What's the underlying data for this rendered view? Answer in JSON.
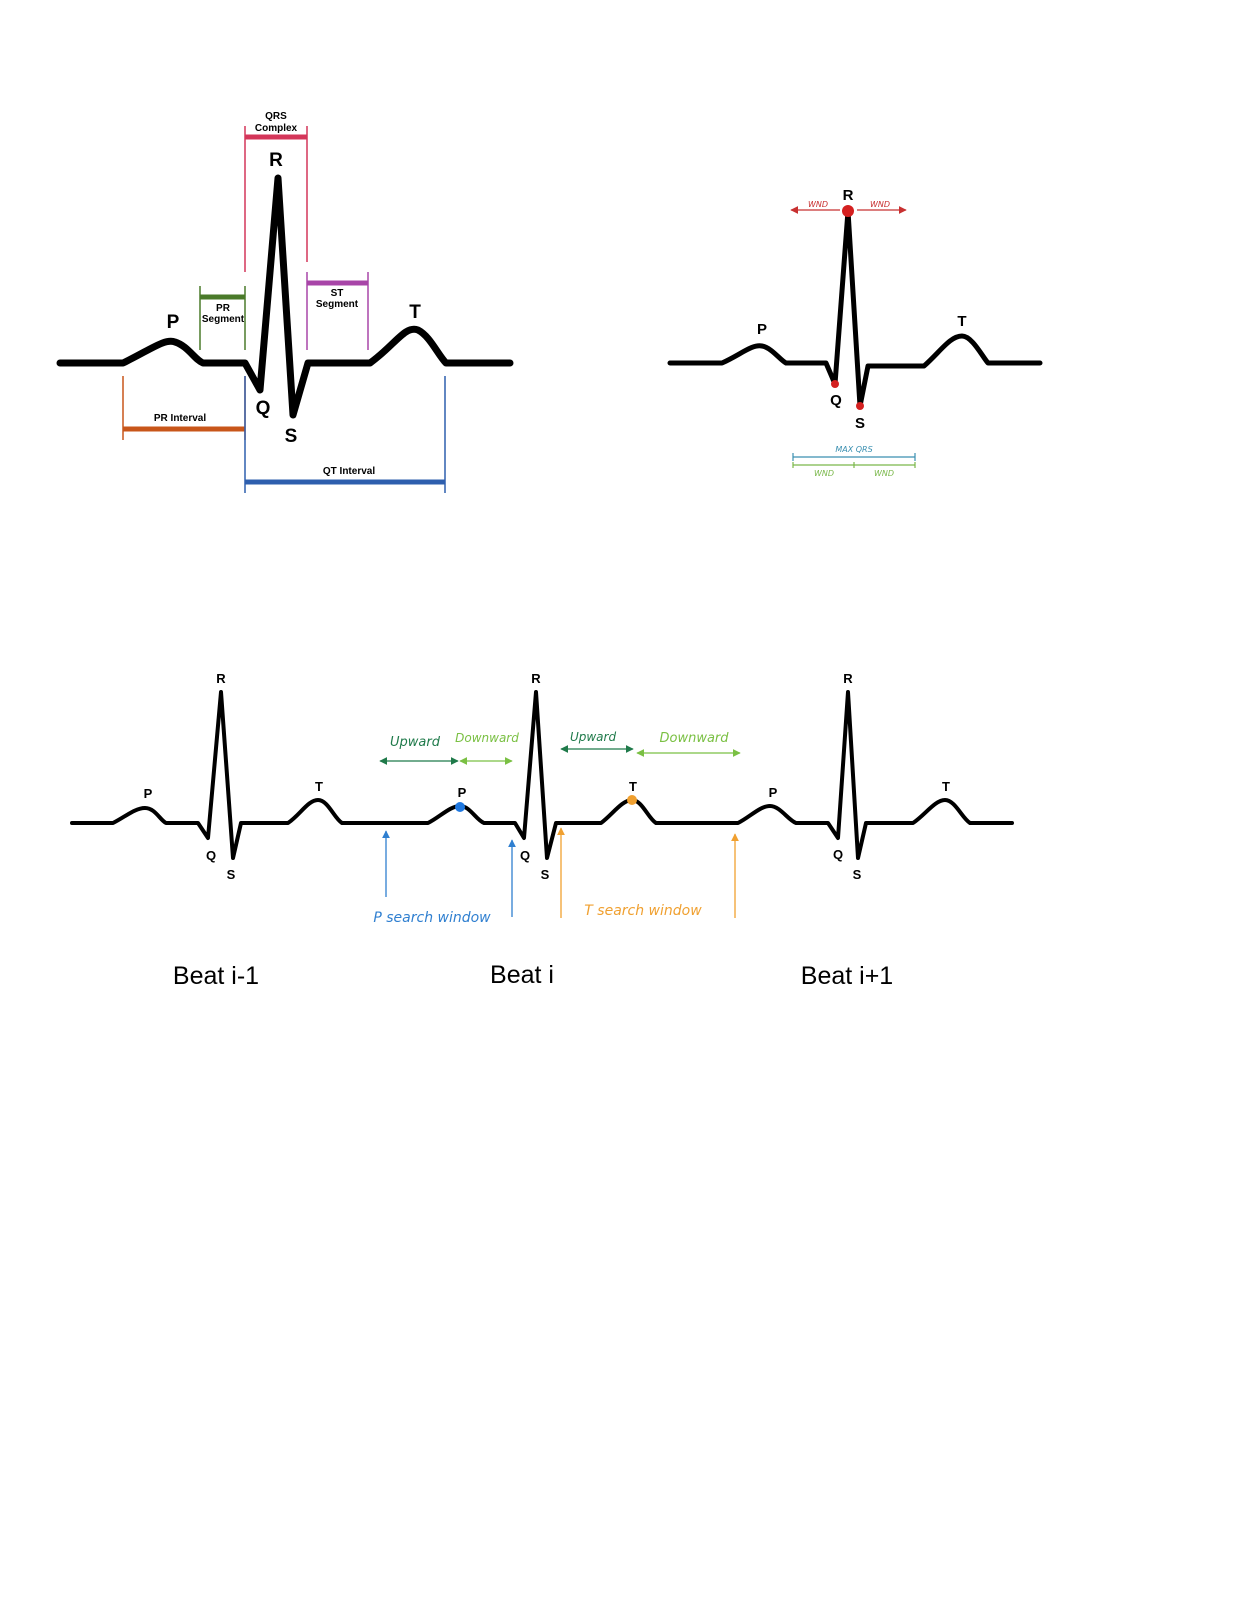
{
  "diagram1": {
    "labels": {
      "p": "P",
      "q": "Q",
      "r": "R",
      "s": "S",
      "t": "T",
      "qrs_line1": "QRS",
      "qrs_line2": "Complex",
      "pr_seg_line1": "PR",
      "pr_seg_line2": "Segment",
      "st_seg_line1": "ST",
      "st_seg_line2": "Segment",
      "pr_interval": "PR Interval",
      "qt_interval": "QT Interval"
    },
    "colors": {
      "qrs": "#d4365a",
      "pr_segment": "#4a7a2a",
      "st_segment": "#a845a8",
      "pr_interval": "#c8561a",
      "qt_interval": "#2e5fae"
    }
  },
  "diagram2": {
    "labels": {
      "p": "P",
      "q": "Q",
      "r": "R",
      "s": "S",
      "t": "T",
      "wnd_left": "WND",
      "wnd_right": "WND",
      "max_qrs": "MAX QRS",
      "wnd_bottom_left": "WND",
      "wnd_bottom_right": "WND"
    },
    "colors": {
      "point": "#d42020",
      "wnd_top": "#c83030",
      "max_qrs": "#3a8fb0",
      "wnd_bottom": "#7ab84a"
    }
  },
  "diagram3": {
    "beats": [
      {
        "p": "P",
        "q": "Q",
        "r": "R",
        "s": "S",
        "t": "T",
        "caption": "Beat i-1"
      },
      {
        "p": "P",
        "q": "Q",
        "r": "R",
        "s": "S",
        "t": "T",
        "caption": "Beat i"
      },
      {
        "p": "P",
        "q": "Q",
        "r": "R",
        "s": "S",
        "t": "T",
        "caption": "Beat i+1"
      }
    ],
    "annotations": {
      "upward_1": "Upward",
      "downward_1": "Downward",
      "upward_2": "Upward",
      "downward_2": "Downward",
      "p_window": "P search window",
      "t_window": "T search window"
    },
    "colors": {
      "upward": "#1f7a4a",
      "downward": "#7ac043",
      "p_window": "#2f7fd0",
      "t_window": "#f0a030",
      "p_point": "#1f78e0",
      "t_point": "#f0a030"
    }
  }
}
